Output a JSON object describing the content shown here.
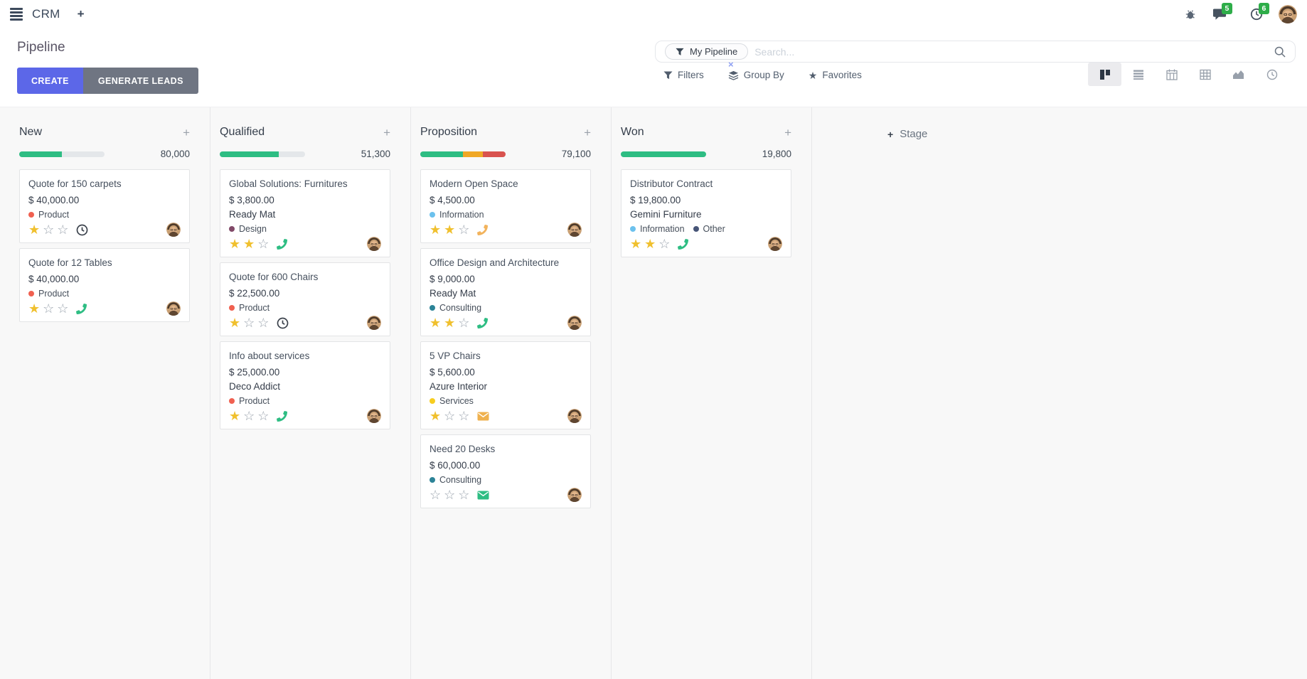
{
  "navbar": {
    "app_name": "CRM",
    "message_count": "5",
    "activity_count": "6",
    "icons": {
      "menu": "hamburger",
      "new_window": "plus",
      "debug": "bug",
      "messages": "chat-bubble",
      "activities": "clock",
      "user": "avatar-photo"
    }
  },
  "control_panel": {
    "title": "Pipeline",
    "create_label": "CREATE",
    "generate_leads_label": "GENERATE LEADS",
    "search": {
      "facet_label": "My Pipeline",
      "facet_remove": "×",
      "placeholder": "Search..."
    },
    "menus": {
      "filters": "Filters",
      "group_by": "Group By",
      "favorites": "Favorites"
    },
    "view_switcher": {
      "active": "kanban",
      "views": [
        "kanban",
        "list",
        "calendar",
        "pivot",
        "graph",
        "activity"
      ]
    }
  },
  "colors": {
    "success": "#2ebd83",
    "warning": "#f0a826",
    "danger": "#d9534f",
    "star_filled": "#f0c02e",
    "star_empty": "#9aa3ad",
    "primary_button": "#5c67e8"
  },
  "board": {
    "add_stage_label": "Stage",
    "columns": [
      {
        "name": "New",
        "total": "80,000",
        "progress": [
          {
            "color": "#2ebd83",
            "pct": 50
          }
        ],
        "cards": [
          {
            "title": "Quote for 150 carpets",
            "amount": "$ 40,000.00",
            "tags": [
              {
                "label": "Product",
                "color": "#f06050"
              }
            ],
            "stars": 1,
            "icon": {
              "type": "clock",
              "color": "#3a414b"
            }
          },
          {
            "title": "Quote for 12 Tables",
            "amount": "$ 40,000.00",
            "tags": [
              {
                "label": "Product",
                "color": "#f06050"
              }
            ],
            "stars": 1,
            "icon": {
              "type": "phone",
              "color": "#2ebd83"
            }
          }
        ]
      },
      {
        "name": "Qualified",
        "total": "51,300",
        "progress": [
          {
            "color": "#2ebd83",
            "pct": 69
          }
        ],
        "cards": [
          {
            "title": "Global Solutions: Furnitures",
            "amount": "$ 3,800.00",
            "partner": "Ready Mat",
            "tags": [
              {
                "label": "Design",
                "color": "#814968"
              }
            ],
            "stars": 2,
            "icon": {
              "type": "phone",
              "color": "#2ebd83"
            }
          },
          {
            "title": "Quote for 600 Chairs",
            "amount": "$ 22,500.00",
            "tags": [
              {
                "label": "Product",
                "color": "#f06050"
              }
            ],
            "stars": 1,
            "icon": {
              "type": "clock",
              "color": "#3a414b"
            }
          },
          {
            "title": "Info about services",
            "amount": "$ 25,000.00",
            "partner": "Deco Addict",
            "tags": [
              {
                "label": "Product",
                "color": "#f06050"
              }
            ],
            "stars": 1,
            "icon": {
              "type": "phone",
              "color": "#2ebd83"
            }
          }
        ]
      },
      {
        "name": "Proposition",
        "total": "79,100",
        "progress": [
          {
            "color": "#2ebd83",
            "pct": 50
          },
          {
            "color": "#f0a826",
            "pct": 23
          },
          {
            "color": "#d9534f",
            "pct": 27
          }
        ],
        "cards": [
          {
            "title": "Modern Open Space",
            "amount": "$ 4,500.00",
            "tags": [
              {
                "label": "Information",
                "color": "#6cc1ed"
              }
            ],
            "stars": 2,
            "icon": {
              "type": "phone",
              "color": "#f2b35c"
            }
          },
          {
            "title": "Office Design and Architecture",
            "amount": "$ 9,000.00",
            "partner": "Ready Mat",
            "tags": [
              {
                "label": "Consulting",
                "color": "#2c8397"
              }
            ],
            "stars": 2,
            "icon": {
              "type": "phone",
              "color": "#2ebd83"
            }
          },
          {
            "title": "5 VP Chairs",
            "amount": "$ 5,600.00",
            "partner": "Azure Interior",
            "tags": [
              {
                "label": "Services",
                "color": "#f7cd1f"
              }
            ],
            "stars": 1,
            "icon": {
              "type": "envelope",
              "color": "#efb14e"
            }
          },
          {
            "title": "Need 20 Desks",
            "amount": "$ 60,000.00",
            "tags": [
              {
                "label": "Consulting",
                "color": "#2c8397"
              }
            ],
            "stars": 0,
            "icon": {
              "type": "envelope",
              "color": "#2ebd83"
            }
          }
        ]
      },
      {
        "name": "Won",
        "total": "19,800",
        "progress": [
          {
            "color": "#2ebd83",
            "pct": 100
          }
        ],
        "cards": [
          {
            "title": "Distributor Contract",
            "amount": "$ 19,800.00",
            "partner": "Gemini Furniture",
            "tags": [
              {
                "label": "Information",
                "color": "#6cc1ed"
              },
              {
                "label": "Other",
                "color": "#475577"
              }
            ],
            "stars": 2,
            "icon": {
              "type": "phone",
              "color": "#2ebd83"
            }
          }
        ]
      }
    ]
  }
}
